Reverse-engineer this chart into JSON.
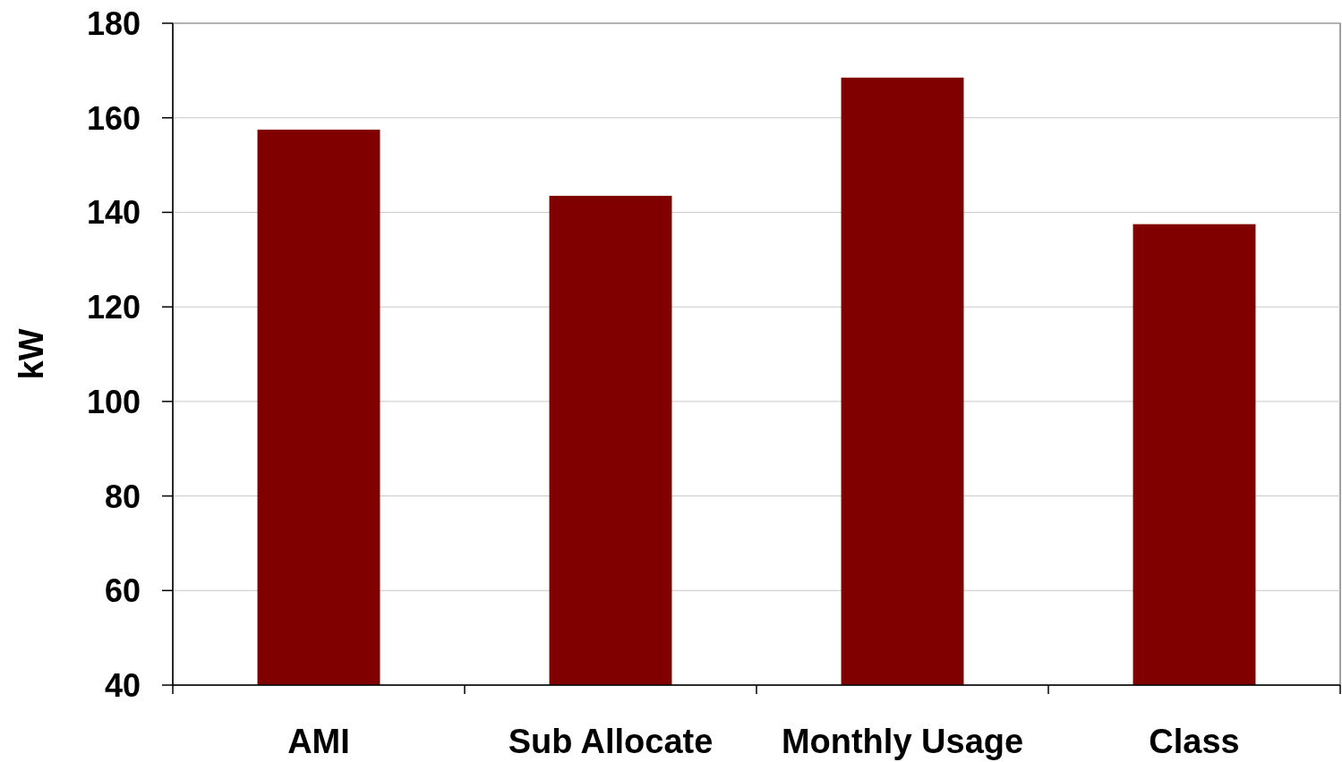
{
  "chart_data": {
    "type": "bar",
    "ylabel": "kW",
    "categories": [
      "AMI",
      "Sub Allocate",
      "Monthly Usage",
      "Class"
    ],
    "values": [
      157.5,
      143.5,
      168.5,
      137.5
    ],
    "color": "#800000",
    "ylim": [
      40,
      180
    ],
    "yticks": [
      40,
      60,
      80,
      100,
      120,
      140,
      160,
      180
    ],
    "grid": "y"
  }
}
